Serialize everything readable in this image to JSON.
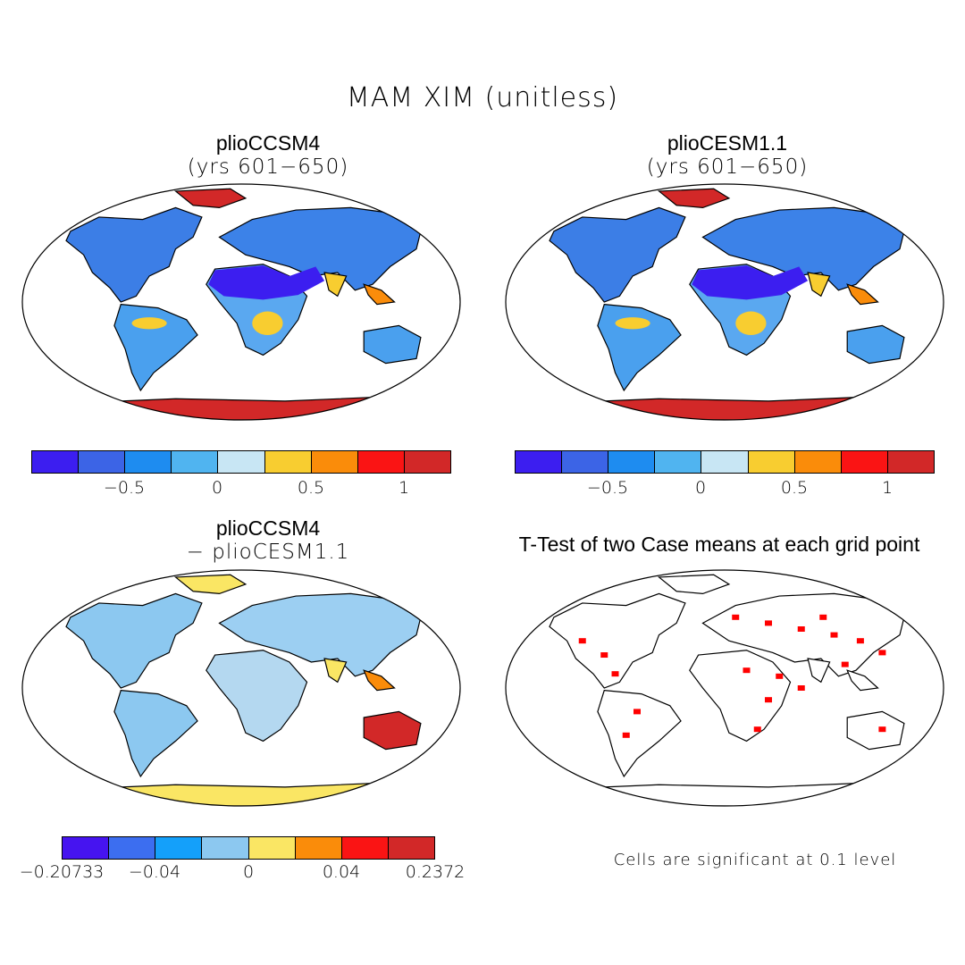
{
  "title": "MAM XIM (unitless)",
  "panels": {
    "p1": {
      "title": "plioCCSM4",
      "subtitle": "(yrs 601−650)"
    },
    "p2": {
      "title": "plioCESM1.1",
      "subtitle": "(yrs 601−650)"
    },
    "p3": {
      "title": "plioCCSM4",
      "subtitle": "− plioCESM1.1"
    },
    "p4": {
      "title": "T-Test of two Case means at each grid point",
      "subtitle": ""
    }
  },
  "colorbar_top": {
    "colors": [
      "#3c1ef0",
      "#3c64e6",
      "#1e8cf0",
      "#50b4f0",
      "#c8e6f4",
      "#f8cd30",
      "#fa8c0a",
      "#fa1414",
      "#d22828"
    ],
    "ticks": [
      "−0.5",
      "0",
      "0.5",
      "1"
    ]
  },
  "colorbar_diff": {
    "colors": [
      "#4614f0",
      "#3c6ef0",
      "#14a0fa",
      "#8cc8f0",
      "#fae664",
      "#fa8c0a",
      "#fa1414",
      "#d22828"
    ],
    "ticks": [
      "−0.20733",
      "−0.04",
      "0",
      "0.04",
      "0.2372"
    ]
  },
  "note": "Cells are significant at 0.1 level",
  "significance_color": "#ff0000"
}
